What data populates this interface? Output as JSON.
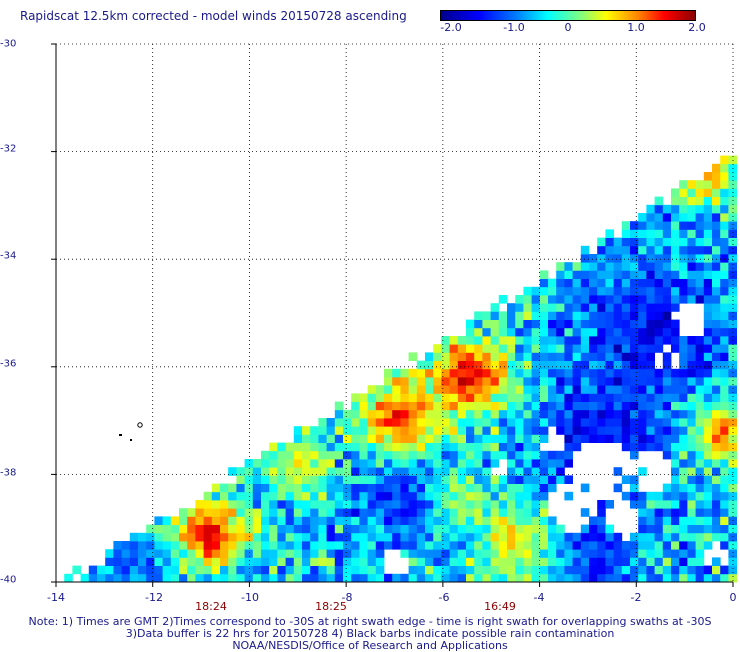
{
  "title": "Rapidscat 12.5km corrected - model winds 20150728 ascending",
  "colorbar": {
    "labels": [
      "-2.0",
      "-1.0",
      "0",
      "1.0",
      "2.0"
    ],
    "values": [
      -2.0,
      -1.0,
      0,
      1.0,
      2.0
    ],
    "range": [
      -2.0,
      2.0
    ]
  },
  "chart_data": {
    "type": "heatmap",
    "title": "Rapidscat 12.5km corrected - model winds 20150728 ascending",
    "x_ticks": [
      "-14",
      "-12",
      "-10",
      "-8",
      "-6",
      "-4",
      "-2",
      "0"
    ],
    "x_tick_values": [
      -14,
      -12,
      -10,
      -8,
      -6,
      -4,
      -2,
      0
    ],
    "y_ticks": [
      "-30",
      "-32",
      "-34",
      "-36",
      "-38",
      "-40"
    ],
    "y_tick_values": [
      -30,
      -32,
      -34,
      -36,
      -38,
      -40
    ],
    "xlim": [
      -14,
      0
    ],
    "ylim": [
      -40,
      -30
    ],
    "grid": true,
    "value_range": [
      -2.0,
      2.0
    ],
    "time_labels": [
      {
        "text": "18:24",
        "x": -11
      },
      {
        "text": "18:25",
        "x": -8
      },
      {
        "text": "16:49",
        "x": -4.8
      }
    ]
  },
  "notes": [
    "Note: 1) Times are GMT 2)Times correspond to -30S at right swath edge - time is right swath for overlapping swaths at -30S",
    "3)Data buffer is 22 hrs for 20150728 4) Black barbs indicate possible rain contamination",
    "NOAA/NESDIS/Office of Research and Applications"
  ]
}
